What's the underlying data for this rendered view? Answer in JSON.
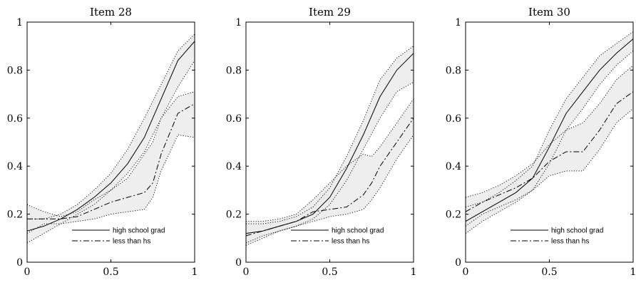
{
  "chart_data": [
    {
      "type": "line",
      "title": "Item 28",
      "xlim": [
        0,
        1
      ],
      "ylim": [
        0,
        1
      ],
      "xticks": [
        "0",
        "0.5",
        "1"
      ],
      "yticks": [
        "0",
        "0.2",
        "0.4",
        "0.6",
        "0.8",
        "1"
      ],
      "grid": false,
      "legend_placement": "bottom-right",
      "series": [
        {
          "name": "high school grad",
          "style": "solid",
          "x": [
            0,
            0.1,
            0.2,
            0.3,
            0.4,
            0.5,
            0.6,
            0.7,
            0.8,
            0.9,
            1.0
          ],
          "y": [
            0.13,
            0.15,
            0.18,
            0.22,
            0.27,
            0.33,
            0.41,
            0.52,
            0.68,
            0.84,
            0.92
          ],
          "band_lower": [
            0.08,
            0.12,
            0.16,
            0.2,
            0.24,
            0.3,
            0.37,
            0.46,
            0.6,
            0.73,
            0.84
          ],
          "band_upper": [
            0.18,
            0.18,
            0.2,
            0.24,
            0.3,
            0.37,
            0.47,
            0.6,
            0.74,
            0.88,
            0.95
          ]
        },
        {
          "name": "less than hs",
          "style": "dashdot",
          "x": [
            0,
            0.1,
            0.2,
            0.3,
            0.4,
            0.5,
            0.6,
            0.7,
            0.75,
            0.8,
            0.9,
            1.0
          ],
          "y": [
            0.18,
            0.18,
            0.18,
            0.19,
            0.22,
            0.25,
            0.27,
            0.29,
            0.33,
            0.45,
            0.62,
            0.66
          ],
          "band_lower": [
            0.12,
            0.16,
            0.16,
            0.17,
            0.18,
            0.2,
            0.21,
            0.22,
            0.27,
            0.38,
            0.53,
            0.52
          ],
          "band_upper": [
            0.24,
            0.21,
            0.19,
            0.21,
            0.26,
            0.3,
            0.35,
            0.45,
            0.5,
            0.6,
            0.69,
            0.71
          ]
        }
      ]
    },
    {
      "type": "line",
      "title": "Item 29",
      "xlim": [
        0,
        1
      ],
      "ylim": [
        0,
        1
      ],
      "xticks": [
        "0",
        "0.5",
        "1"
      ],
      "yticks": [
        "0",
        "0.2",
        "0.4",
        "0.6",
        "0.8",
        "1"
      ],
      "grid": false,
      "legend_placement": "bottom-right",
      "series": [
        {
          "name": "high school grad",
          "style": "solid",
          "x": [
            0,
            0.1,
            0.2,
            0.3,
            0.4,
            0.5,
            0.6,
            0.7,
            0.8,
            0.9,
            1.0
          ],
          "y": [
            0.12,
            0.13,
            0.15,
            0.17,
            0.2,
            0.27,
            0.39,
            0.53,
            0.69,
            0.8,
            0.87
          ],
          "band_lower": [
            0.08,
            0.11,
            0.13,
            0.15,
            0.18,
            0.24,
            0.34,
            0.47,
            0.6,
            0.71,
            0.75
          ],
          "band_upper": [
            0.16,
            0.16,
            0.17,
            0.19,
            0.23,
            0.31,
            0.44,
            0.59,
            0.76,
            0.85,
            0.9
          ]
        },
        {
          "name": "less than hs",
          "style": "dashdot",
          "x": [
            0,
            0.1,
            0.2,
            0.3,
            0.4,
            0.5,
            0.6,
            0.7,
            0.75,
            0.8,
            0.9,
            1.0
          ],
          "y": [
            0.11,
            0.13,
            0.15,
            0.17,
            0.21,
            0.22,
            0.23,
            0.28,
            0.33,
            0.4,
            0.5,
            0.6
          ],
          "band_lower": [
            0.07,
            0.1,
            0.13,
            0.15,
            0.17,
            0.19,
            0.2,
            0.22,
            0.26,
            0.31,
            0.43,
            0.53
          ],
          "band_upper": [
            0.17,
            0.17,
            0.18,
            0.2,
            0.26,
            0.33,
            0.4,
            0.45,
            0.44,
            0.48,
            0.58,
            0.68
          ]
        }
      ]
    },
    {
      "type": "line",
      "title": "Item 30",
      "xlim": [
        0,
        1
      ],
      "ylim": [
        0,
        1
      ],
      "xticks": [
        "0",
        "0.5",
        "1"
      ],
      "yticks": [
        "0",
        "0.2",
        "0.4",
        "0.6",
        "0.8",
        "1"
      ],
      "grid": false,
      "legend_placement": "bottom-right",
      "series": [
        {
          "name": "high school grad",
          "style": "solid",
          "x": [
            0,
            0.1,
            0.2,
            0.3,
            0.4,
            0.5,
            0.6,
            0.7,
            0.8,
            0.9,
            1.0
          ],
          "y": [
            0.17,
            0.21,
            0.25,
            0.29,
            0.35,
            0.48,
            0.62,
            0.71,
            0.8,
            0.87,
            0.93
          ],
          "band_lower": [
            0.12,
            0.17,
            0.21,
            0.25,
            0.3,
            0.41,
            0.55,
            0.64,
            0.74,
            0.82,
            0.88
          ],
          "band_upper": [
            0.23,
            0.25,
            0.29,
            0.34,
            0.4,
            0.55,
            0.68,
            0.77,
            0.86,
            0.91,
            0.96
          ]
        },
        {
          "name": "less than hs",
          "style": "dashdot",
          "x": [
            0,
            0.1,
            0.2,
            0.3,
            0.4,
            0.5,
            0.6,
            0.7,
            0.8,
            0.9,
            1.0
          ],
          "y": [
            0.21,
            0.25,
            0.28,
            0.31,
            0.35,
            0.42,
            0.46,
            0.46,
            0.55,
            0.66,
            0.71
          ],
          "band_lower": [
            0.15,
            0.2,
            0.23,
            0.26,
            0.3,
            0.36,
            0.38,
            0.38,
            0.47,
            0.58,
            0.64
          ],
          "band_upper": [
            0.27,
            0.29,
            0.32,
            0.36,
            0.41,
            0.49,
            0.55,
            0.58,
            0.66,
            0.76,
            0.82
          ]
        }
      ]
    }
  ]
}
